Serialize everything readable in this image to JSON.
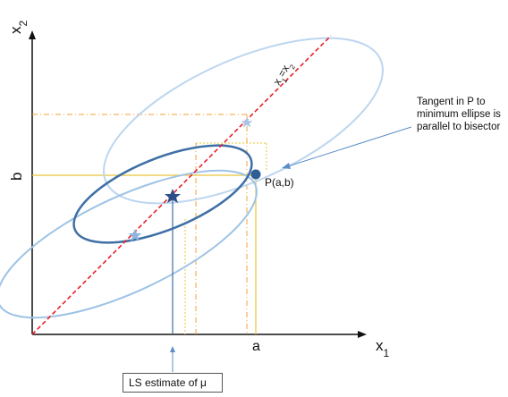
{
  "axes": {
    "y_label": "x",
    "y_sub": "2",
    "x_label": "x",
    "x_sub": "1",
    "b_label": "b",
    "a_label": "a"
  },
  "bisector": {
    "label_main": "x",
    "label_sub1": "1",
    "label_eq": "=x",
    "label_sub2": "2"
  },
  "point": {
    "label": "P(a,b)"
  },
  "annotation": {
    "tangent_note": "Tangent in P to minimum ellipse is parallel to bisector",
    "ls_box": "LS estimate of μ"
  },
  "colors": {
    "axis": "#111111",
    "bisector": "#e8202a",
    "ellipse_light": "#a9c9ea",
    "ellipse_mid": "#7fb0dd",
    "ellipse_dark": "#3e6fa5",
    "guide_yellow": "#e8c53a",
    "guide_orange": "#f0a030",
    "pointer": "#5b8fc7"
  }
}
